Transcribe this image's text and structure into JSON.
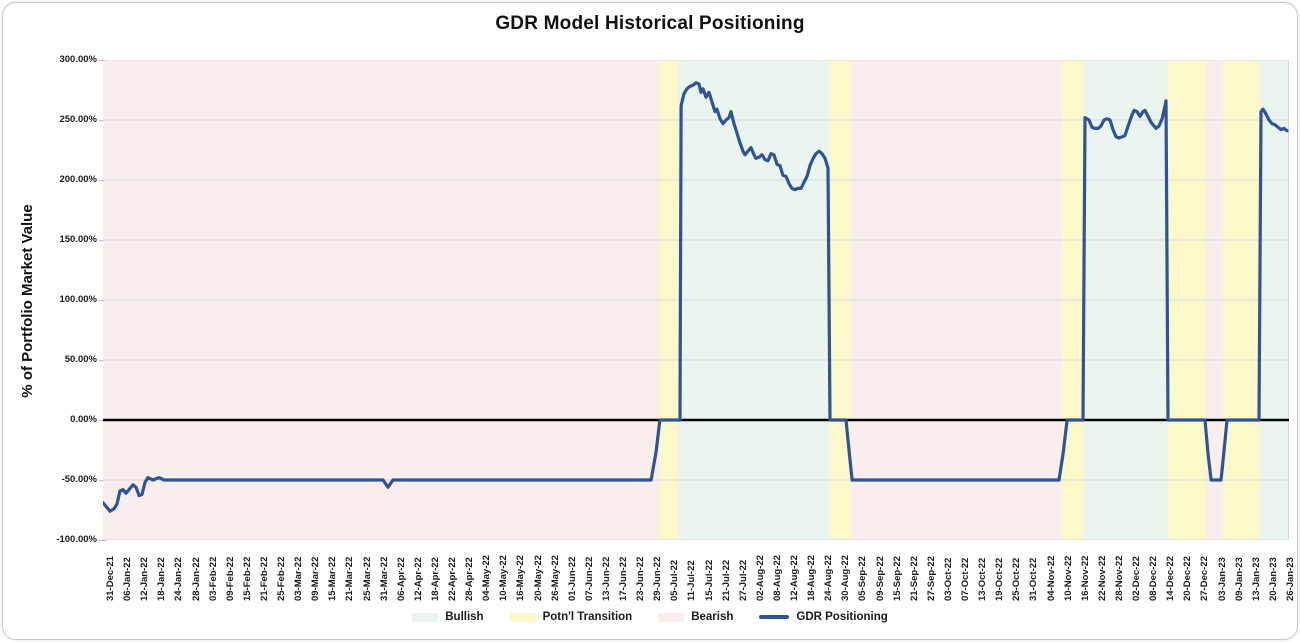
{
  "chart_data": {
    "type": "line",
    "title": "GDR Model Historical Positioning",
    "ylabel": "% of Portfolio Market Value",
    "grid_color": "#d8d8d8",
    "zero_line_color": "#000000",
    "y_axis": {
      "min": -100,
      "max": 300,
      "ticks": [
        {
          "label": "300.00%",
          "value": 300
        },
        {
          "label": "250.00%",
          "value": 250
        },
        {
          "label": "200.00%",
          "value": 200
        },
        {
          "label": "150.00%",
          "value": 150
        },
        {
          "label": "100.00%",
          "value": 100
        },
        {
          "label": "50.00%",
          "value": 50
        },
        {
          "label": "0.00%",
          "value": 0
        },
        {
          "label": "-50.00%",
          "value": -50
        },
        {
          "label": "-100.00%",
          "value": -100
        }
      ]
    },
    "x_axis": {
      "labels": [
        "31-Dec-21",
        "06-Jan-22",
        "12-Jan-22",
        "18-Jan-22",
        "24-Jan-22",
        "28-Jan-22",
        "03-Feb-22",
        "09-Feb-22",
        "15-Feb-22",
        "21-Feb-22",
        "25-Feb-22",
        "03-Mar-22",
        "09-Mar-22",
        "15-Mar-22",
        "21-Mar-22",
        "25-Mar-22",
        "31-Mar-22",
        "06-Apr-22",
        "12-Apr-22",
        "18-Apr-22",
        "22-Apr-22",
        "28-Apr-22",
        "04-May-22",
        "10-May-22",
        "16-May-22",
        "20-May-22",
        "26-May-22",
        "01-Jun-22",
        "07-Jun-22",
        "13-Jun-22",
        "17-Jun-22",
        "23-Jun-22",
        "29-Jun-22",
        "05-Jul-22",
        "11-Jul-22",
        "15-Jul-22",
        "21-Jul-22",
        "27-Jul-22",
        "02-Aug-22",
        "08-Aug-22",
        "12-Aug-22",
        "18-Aug-22",
        "24-Aug-22",
        "30-Aug-22",
        "05-Sep-22",
        "09-Sep-22",
        "15-Sep-22",
        "21-Sep-22",
        "27-Sep-22",
        "03-Oct-22",
        "07-Oct-22",
        "13-Oct-22",
        "19-Oct-22",
        "25-Oct-22",
        "31-Oct-22",
        "04-Nov-22",
        "10-Nov-22",
        "16-Nov-22",
        "22-Nov-22",
        "28-Nov-22",
        "02-Dec-22",
        "08-Dec-22",
        "14-Dec-22",
        "20-Dec-22",
        "27-Dec-22",
        "03-Jan-23",
        "09-Jan-23",
        "13-Jan-23",
        "20-Jan-23",
        "26-Jan-23"
      ]
    },
    "region_colors": {
      "bullish": "#e9f5ee",
      "transition": "#fbf9c9",
      "bearish": "#faedee"
    },
    "regions": [
      {
        "type": "bearish",
        "from": 0.0,
        "to": 0.4688
      },
      {
        "type": "transition",
        "from": 0.4688,
        "to": 0.4848
      },
      {
        "type": "bullish",
        "from": 0.4848,
        "to": 0.6122
      },
      {
        "type": "transition",
        "from": 0.6122,
        "to": 0.6298
      },
      {
        "type": "bearish",
        "from": 0.6298,
        "to": 0.8086
      },
      {
        "type": "transition",
        "from": 0.8086,
        "to": 0.8272
      },
      {
        "type": "bullish",
        "from": 0.8272,
        "to": 0.898
      },
      {
        "type": "transition",
        "from": 0.898,
        "to": 0.93
      },
      {
        "type": "bearish",
        "from": 0.93,
        "to": 0.9444
      },
      {
        "type": "transition",
        "from": 0.9444,
        "to": 0.9756
      },
      {
        "type": "bullish",
        "from": 0.9756,
        "to": 1.0
      }
    ],
    "series": [
      {
        "name": "GDR Positioning",
        "color": "#2f5496",
        "points": [
          [
            0.0,
            -69
          ],
          [
            0.0034,
            -73
          ],
          [
            0.0059,
            -76
          ],
          [
            0.0093,
            -74
          ],
          [
            0.0118,
            -70
          ],
          [
            0.0143,
            -59
          ],
          [
            0.0169,
            -58
          ],
          [
            0.0194,
            -61
          ],
          [
            0.0228,
            -57
          ],
          [
            0.0253,
            -54
          ],
          [
            0.0278,
            -56
          ],
          [
            0.0304,
            -63
          ],
          [
            0.0329,
            -62
          ],
          [
            0.0354,
            -52
          ],
          [
            0.0379,
            -48
          ],
          [
            0.0422,
            -50
          ],
          [
            0.0472,
            -48
          ],
          [
            0.0514,
            -50
          ],
          [
            0.2361,
            -50
          ],
          [
            0.2403,
            -56
          ],
          [
            0.2445,
            -50
          ],
          [
            0.4621,
            -50
          ],
          [
            0.4663,
            -27
          ],
          [
            0.4696,
            0
          ],
          [
            0.4865,
            0
          ],
          [
            0.4874,
            262
          ],
          [
            0.4899,
            272
          ],
          [
            0.4924,
            276
          ],
          [
            0.4949,
            278
          ],
          [
            0.4975,
            279
          ],
          [
            0.5,
            281
          ],
          [
            0.5025,
            280
          ],
          [
            0.5042,
            273
          ],
          [
            0.5059,
            276
          ],
          [
            0.5084,
            269
          ],
          [
            0.511,
            273
          ],
          [
            0.5135,
            265
          ],
          [
            0.516,
            257
          ],
          [
            0.5177,
            259
          ],
          [
            0.5202,
            251
          ],
          [
            0.5228,
            247
          ],
          [
            0.5253,
            250
          ],
          [
            0.5278,
            252
          ],
          [
            0.5295,
            257
          ],
          [
            0.532,
            247
          ],
          [
            0.5346,
            239
          ],
          [
            0.5371,
            231
          ],
          [
            0.5396,
            224
          ],
          [
            0.5413,
            221
          ],
          [
            0.5438,
            224
          ],
          [
            0.5464,
            227
          ],
          [
            0.5489,
            221
          ],
          [
            0.5506,
            218
          ],
          [
            0.5531,
            219
          ],
          [
            0.5556,
            221
          ],
          [
            0.5582,
            217
          ],
          [
            0.5607,
            216
          ],
          [
            0.5632,
            222
          ],
          [
            0.5658,
            221
          ],
          [
            0.5683,
            213
          ],
          [
            0.5708,
            212
          ],
          [
            0.5733,
            204
          ],
          [
            0.5759,
            203
          ],
          [
            0.5784,
            197
          ],
          [
            0.5809,
            193
          ],
          [
            0.5835,
            192
          ],
          [
            0.586,
            193
          ],
          [
            0.5885,
            193
          ],
          [
            0.5911,
            198
          ],
          [
            0.5936,
            203
          ],
          [
            0.5961,
            212
          ],
          [
            0.5987,
            218
          ],
          [
            0.6012,
            222
          ],
          [
            0.6037,
            224
          ],
          [
            0.6062,
            222
          ],
          [
            0.6088,
            218
          ],
          [
            0.6113,
            210
          ],
          [
            0.613,
            0
          ],
          [
            0.6265,
            0
          ],
          [
            0.629,
            -25
          ],
          [
            0.6316,
            -50
          ],
          [
            0.8061,
            -50
          ],
          [
            0.8095,
            -28
          ],
          [
            0.8129,
            0
          ],
          [
            0.8263,
            0
          ],
          [
            0.828,
            252
          ],
          [
            0.8314,
            250
          ],
          [
            0.8339,
            244
          ],
          [
            0.8365,
            243
          ],
          [
            0.839,
            243
          ],
          [
            0.8415,
            245
          ],
          [
            0.844,
            250
          ],
          [
            0.8466,
            251
          ],
          [
            0.8491,
            250
          ],
          [
            0.8516,
            242
          ],
          [
            0.8541,
            236
          ],
          [
            0.8567,
            235
          ],
          [
            0.8592,
            236
          ],
          [
            0.8617,
            237
          ],
          [
            0.8643,
            245
          ],
          [
            0.8668,
            252
          ],
          [
            0.8693,
            258
          ],
          [
            0.8718,
            257
          ],
          [
            0.8744,
            253
          ],
          [
            0.8769,
            257
          ],
          [
            0.8786,
            258
          ],
          [
            0.8811,
            253
          ],
          [
            0.8837,
            248
          ],
          [
            0.8862,
            245
          ],
          [
            0.8879,
            243
          ],
          [
            0.8904,
            245
          ],
          [
            0.893,
            251
          ],
          [
            0.8955,
            262
          ],
          [
            0.8963,
            266
          ],
          [
            0.898,
            0
          ],
          [
            0.9292,
            0
          ],
          [
            0.9317,
            -28
          ],
          [
            0.9343,
            -50
          ],
          [
            0.9427,
            -50
          ],
          [
            0.9452,
            -26
          ],
          [
            0.9477,
            0
          ],
          [
            0.9747,
            0
          ],
          [
            0.9764,
            257
          ],
          [
            0.9781,
            259
          ],
          [
            0.9806,
            255
          ],
          [
            0.9831,
            250
          ],
          [
            0.9857,
            247
          ],
          [
            0.9882,
            246
          ],
          [
            0.9907,
            244
          ],
          [
            0.9933,
            242
          ],
          [
            0.9958,
            243
          ],
          [
            0.9983,
            241
          ]
        ]
      }
    ],
    "legend": [
      {
        "label": "Bullish",
        "swatch": "fill",
        "color": "#e9f5ee"
      },
      {
        "label": "Potn'l Transition",
        "swatch": "fill",
        "color": "#fbf9c9"
      },
      {
        "label": "Bearish",
        "swatch": "fill",
        "color": "#faedee"
      },
      {
        "label": "GDR Positioning",
        "swatch": "line",
        "color": "#2f5496"
      }
    ]
  }
}
